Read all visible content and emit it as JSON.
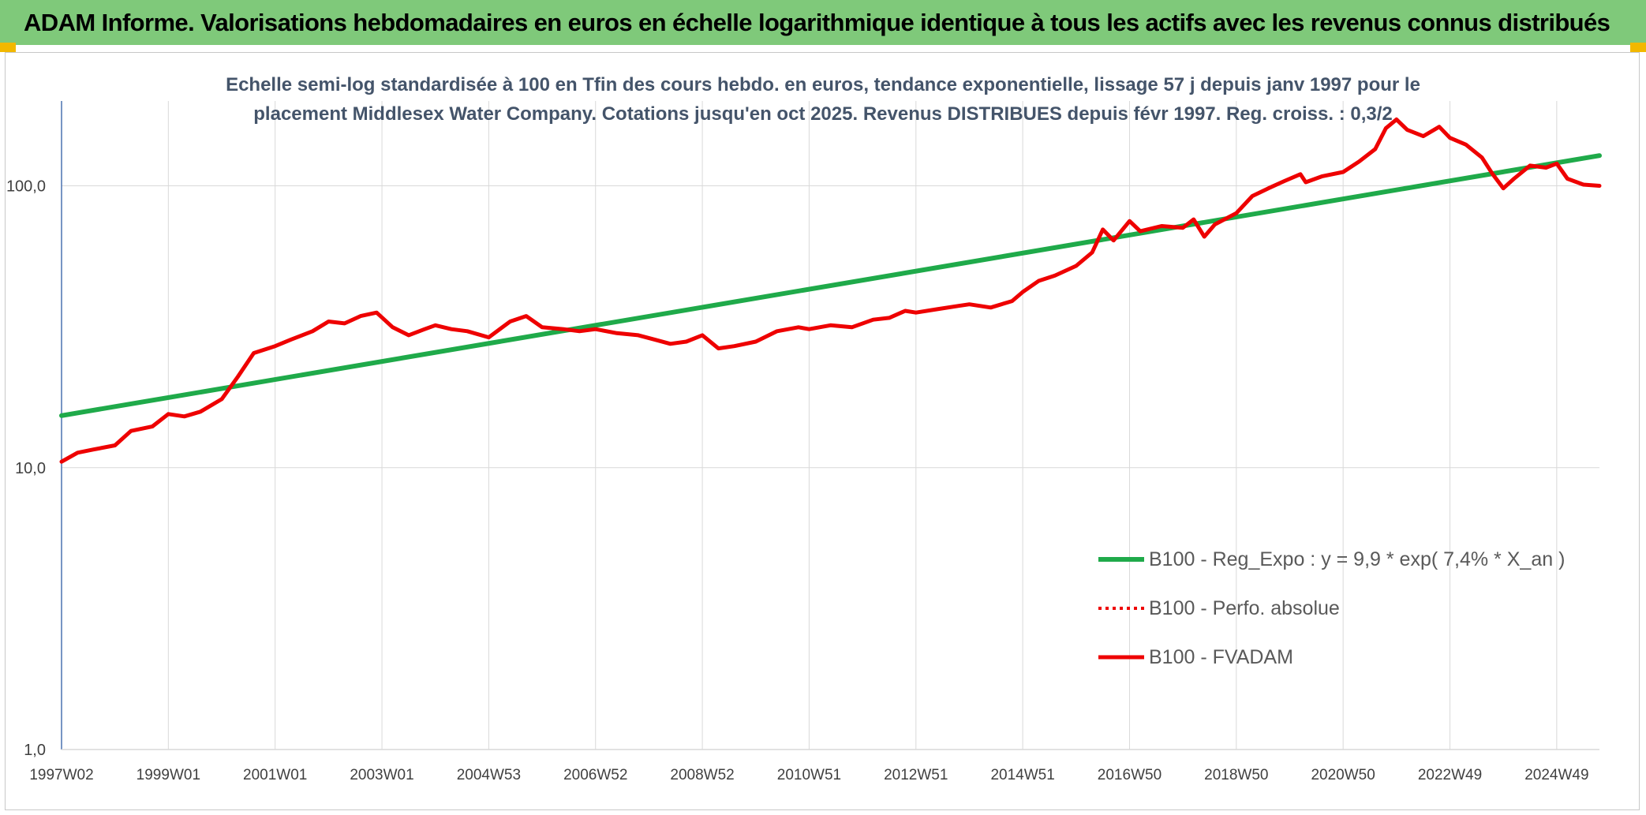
{
  "banner": {
    "title": "ADAM Informe. Valorisations hebdomadaires en euros en échelle logarithmique identique à tous les actifs avec les revenus connus distribués"
  },
  "colors": {
    "banner_bg": "#7fc97a",
    "corner_accent": "#f2b800",
    "trend_line": "#1faa4a",
    "price_line": "#ee0000",
    "grid": "#d9d9d9",
    "axis_text": "#404040",
    "title_text": "#44546a"
  },
  "chart_data": {
    "type": "line",
    "title_lines": [
      "Echelle semi-log standardisée à 100 en Tfin des cours hebdo. en euros, tendance exponentielle, lissage 57 j depuis janv 1997 pour le",
      "placement Middlesex Water Company. Cotations jusqu'en oct 2025. Revenus DISTRIBUES depuis févr 1997. Reg. croiss. : 0,3/2"
    ],
    "y_scale": "log",
    "y_range": [
      1,
      200
    ],
    "x_range": [
      1997.0,
      2025.8
    ],
    "y_ticks": [
      {
        "value": 1,
        "label": "1,0"
      },
      {
        "value": 10,
        "label": "10,0"
      },
      {
        "value": 100,
        "label": "100,0"
      }
    ],
    "x_ticks": [
      {
        "x": 1997.0,
        "label": "1997W02"
      },
      {
        "x": 1999.0,
        "label": "1999W01"
      },
      {
        "x": 2001.0,
        "label": "2001W01"
      },
      {
        "x": 2003.0,
        "label": "2003W01"
      },
      {
        "x": 2005.0,
        "label": "2004W53"
      },
      {
        "x": 2007.0,
        "label": "2006W52"
      },
      {
        "x": 2009.0,
        "label": "2008W52"
      },
      {
        "x": 2011.0,
        "label": "2010W51"
      },
      {
        "x": 2013.0,
        "label": "2012W51"
      },
      {
        "x": 2015.0,
        "label": "2014W51"
      },
      {
        "x": 2017.0,
        "label": "2016W50"
      },
      {
        "x": 2019.0,
        "label": "2018W50"
      },
      {
        "x": 2021.0,
        "label": "2020W50"
      },
      {
        "x": 2023.0,
        "label": "2022W49"
      },
      {
        "x": 2025.0,
        "label": "2024W49"
      }
    ],
    "legend_position": "bottom-right",
    "series": [
      {
        "name": "B100 - Reg_Expo : y = 9,9 * exp( 7,4% *  X_an )",
        "style": "solid-green",
        "points": [
          [
            1997.0,
            15.3
          ],
          [
            2025.8,
            128
          ]
        ]
      },
      {
        "name": "B100 - Perfo. absolue",
        "style": "dotted-red",
        "points": []
      },
      {
        "name": "B100 - FVADAM",
        "style": "solid-red",
        "points": [
          [
            1997.0,
            10.5
          ],
          [
            1997.3,
            11.3
          ],
          [
            1997.6,
            11.6
          ],
          [
            1998.0,
            12.0
          ],
          [
            1998.3,
            13.5
          ],
          [
            1998.7,
            14.0
          ],
          [
            1999.0,
            15.5
          ],
          [
            1999.3,
            15.2
          ],
          [
            1999.6,
            15.8
          ],
          [
            2000.0,
            17.5
          ],
          [
            2000.3,
            21.0
          ],
          [
            2000.6,
            25.5
          ],
          [
            2001.0,
            27.0
          ],
          [
            2001.3,
            28.5
          ],
          [
            2001.7,
            30.5
          ],
          [
            2002.0,
            33.0
          ],
          [
            2002.3,
            32.5
          ],
          [
            2002.6,
            34.5
          ],
          [
            2002.9,
            35.5
          ],
          [
            2003.2,
            31.5
          ],
          [
            2003.5,
            29.5
          ],
          [
            2003.8,
            31.0
          ],
          [
            2004.0,
            32.0
          ],
          [
            2004.3,
            31.0
          ],
          [
            2004.6,
            30.5
          ],
          [
            2005.0,
            29.0
          ],
          [
            2005.4,
            33.0
          ],
          [
            2005.7,
            34.5
          ],
          [
            2006.0,
            31.5
          ],
          [
            2006.4,
            31.0
          ],
          [
            2006.7,
            30.5
          ],
          [
            2007.0,
            31.0
          ],
          [
            2007.4,
            30.0
          ],
          [
            2007.8,
            29.5
          ],
          [
            2008.1,
            28.5
          ],
          [
            2008.4,
            27.5
          ],
          [
            2008.7,
            28.0
          ],
          [
            2009.0,
            29.5
          ],
          [
            2009.3,
            26.5
          ],
          [
            2009.6,
            27.0
          ],
          [
            2010.0,
            28.0
          ],
          [
            2010.4,
            30.5
          ],
          [
            2010.8,
            31.5
          ],
          [
            2011.0,
            31.0
          ],
          [
            2011.4,
            32.0
          ],
          [
            2011.8,
            31.5
          ],
          [
            2012.2,
            33.5
          ],
          [
            2012.5,
            34.0
          ],
          [
            2012.8,
            36.0
          ],
          [
            2013.0,
            35.5
          ],
          [
            2013.4,
            36.5
          ],
          [
            2013.8,
            37.5
          ],
          [
            2014.0,
            38.0
          ],
          [
            2014.4,
            37.0
          ],
          [
            2014.8,
            39.0
          ],
          [
            2015.0,
            42.0
          ],
          [
            2015.3,
            46.0
          ],
          [
            2015.6,
            48.0
          ],
          [
            2016.0,
            52.0
          ],
          [
            2016.3,
            58.0
          ],
          [
            2016.5,
            70.0
          ],
          [
            2016.7,
            64.0
          ],
          [
            2017.0,
            75.0
          ],
          [
            2017.2,
            69.0
          ],
          [
            2017.6,
            72.0
          ],
          [
            2018.0,
            71.0
          ],
          [
            2018.2,
            76.0
          ],
          [
            2018.4,
            66.0
          ],
          [
            2018.6,
            73.0
          ],
          [
            2019.0,
            80.0
          ],
          [
            2019.3,
            92.0
          ],
          [
            2019.6,
            98.0
          ],
          [
            2019.9,
            104.0
          ],
          [
            2020.2,
            110.0
          ],
          [
            2020.3,
            103.0
          ],
          [
            2020.6,
            108.0
          ],
          [
            2021.0,
            112.0
          ],
          [
            2021.3,
            122.0
          ],
          [
            2021.6,
            135.0
          ],
          [
            2021.8,
            160.0
          ],
          [
            2022.0,
            172.0
          ],
          [
            2022.2,
            158.0
          ],
          [
            2022.5,
            150.0
          ],
          [
            2022.8,
            162.0
          ],
          [
            2023.0,
            148.0
          ],
          [
            2023.3,
            140.0
          ],
          [
            2023.6,
            126.0
          ],
          [
            2023.8,
            110.0
          ],
          [
            2024.0,
            98.0
          ],
          [
            2024.2,
            106.0
          ],
          [
            2024.5,
            118.0
          ],
          [
            2024.8,
            116.0
          ],
          [
            2025.0,
            120.0
          ],
          [
            2025.2,
            106.0
          ],
          [
            2025.5,
            101.0
          ],
          [
            2025.8,
            100.0
          ]
        ]
      }
    ]
  }
}
